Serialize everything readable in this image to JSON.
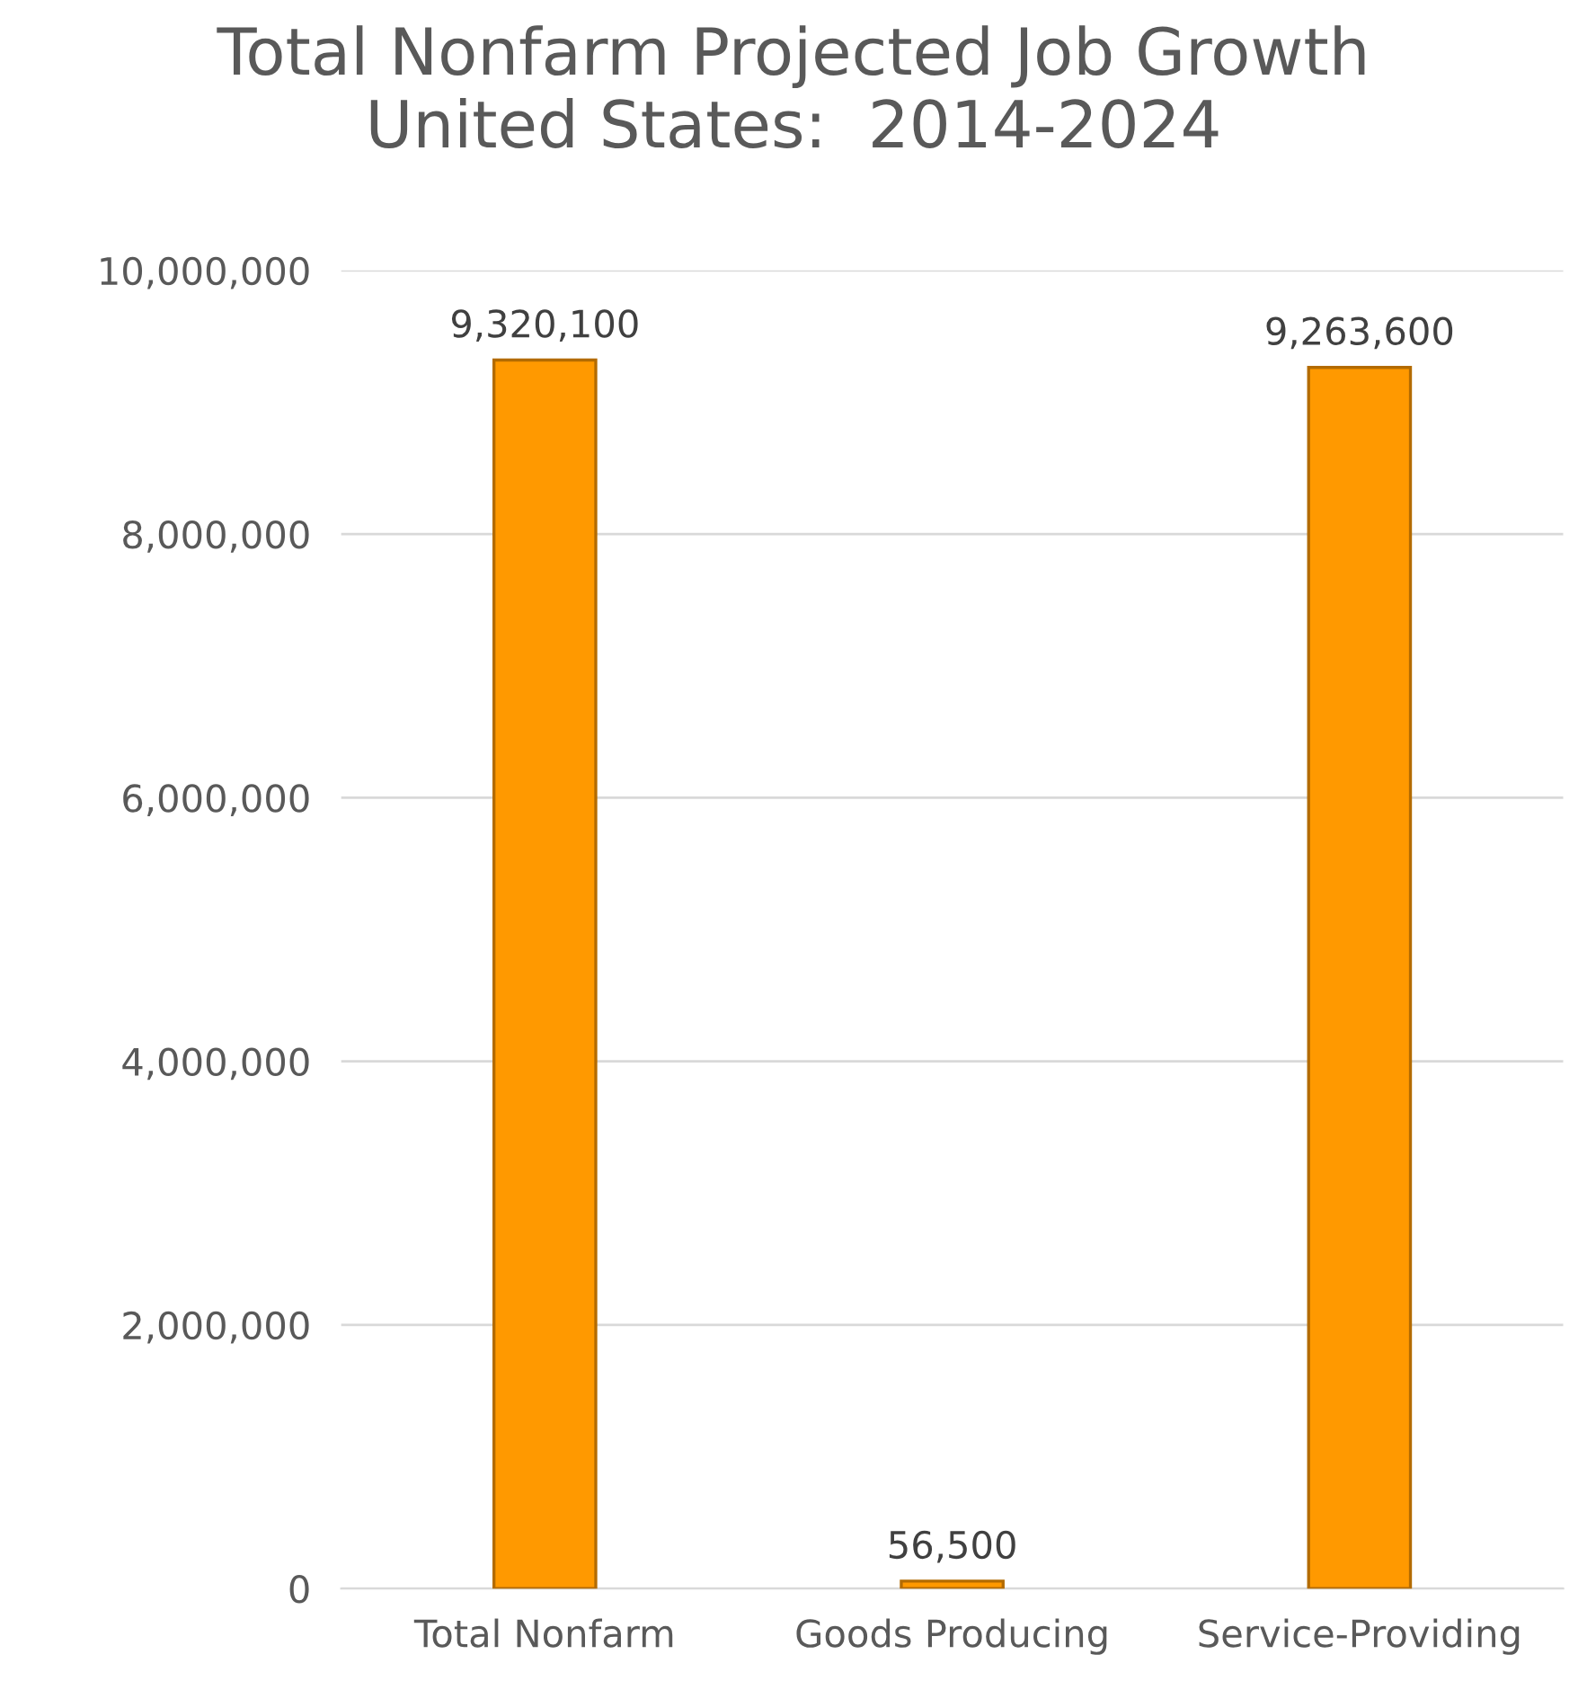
{
  "chart_data": {
    "type": "bar",
    "title": "Total Nonfarm Projected Job Growth\nUnited States:  2014-2024",
    "categories": [
      "Total Nonfarm",
      "Goods Producing",
      "Service-Providing"
    ],
    "values": [
      9320100,
      56500,
      9263600
    ],
    "value_labels": [
      "9,320,100",
      "56,500",
      "9,263,600"
    ],
    "color": "#ff9900",
    "ylim": [
      0,
      10000000
    ],
    "yticks": [
      {
        "value": 0,
        "label": "0"
      },
      {
        "value": 2000000,
        "label": "2,000,000"
      },
      {
        "value": 4000000,
        "label": "4,000,000"
      },
      {
        "value": 6000000,
        "label": "6,000,000"
      },
      {
        "value": 8000000,
        "label": "8,000,000"
      },
      {
        "value": 10000000,
        "label": "10,000,000"
      }
    ],
    "grid": "y",
    "legend": false
  }
}
